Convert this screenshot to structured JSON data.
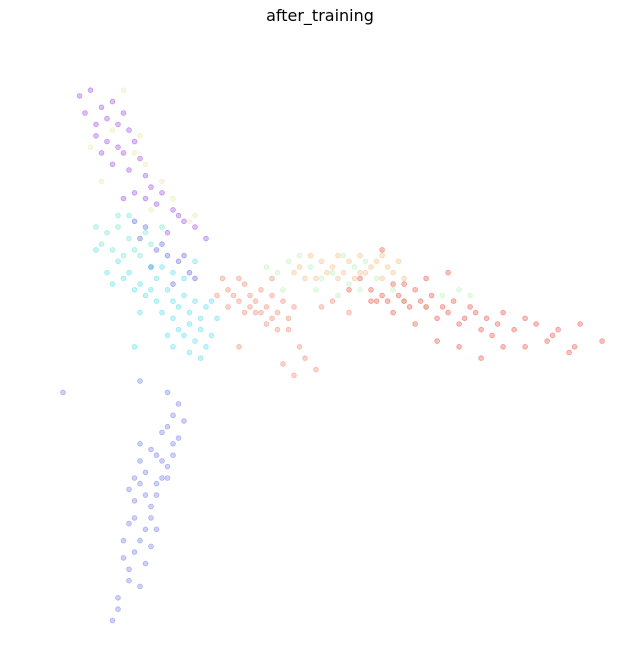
{
  "chart_data": {
    "type": "scatter",
    "title": "after_training",
    "xlabel": "",
    "ylabel": "",
    "axes_visible": false,
    "grid": false,
    "xlim": [
      0,
      100
    ],
    "ylim": [
      0,
      100
    ],
    "marker": "circle",
    "alpha": 0.3,
    "series": [
      {
        "name": "purple",
        "color": "#8a2be2",
        "points": [
          [
            9,
            94
          ],
          [
            11,
            95
          ],
          [
            13,
            92
          ],
          [
            14,
            90
          ],
          [
            15,
            93
          ],
          [
            16,
            89
          ],
          [
            17,
            91
          ],
          [
            18,
            88
          ],
          [
            12,
            87
          ],
          [
            14,
            86
          ],
          [
            16,
            85
          ],
          [
            17,
            84
          ],
          [
            19,
            86
          ],
          [
            20,
            83
          ],
          [
            15,
            82
          ],
          [
            18,
            81
          ],
          [
            21,
            80
          ],
          [
            22,
            78
          ],
          [
            19,
            77
          ],
          [
            24,
            77
          ],
          [
            17,
            76
          ],
          [
            23,
            75
          ],
          [
            26,
            74
          ],
          [
            28,
            72
          ],
          [
            30,
            71
          ],
          [
            25,
            70
          ],
          [
            27,
            73
          ],
          [
            12,
            89
          ],
          [
            10,
            91
          ],
          [
            13,
            84
          ],
          [
            21,
            76
          ],
          [
            32,
            69
          ]
        ]
      },
      {
        "name": "light-yellow",
        "color": "#e6e39a",
        "points": [
          [
            17,
            95
          ],
          [
            15,
            88
          ],
          [
            19,
            84
          ],
          [
            21,
            82
          ],
          [
            24,
            79
          ],
          [
            26,
            76
          ],
          [
            13,
            79
          ],
          [
            29,
            72
          ],
          [
            22,
            74
          ],
          [
            20,
            87
          ],
          [
            11,
            85
          ],
          [
            30,
            73
          ]
        ]
      },
      {
        "name": "blue-mid",
        "color": "#3f4bd8",
        "points": [
          [
            19,
            72
          ],
          [
            21,
            71
          ],
          [
            20,
            69
          ],
          [
            23,
            67
          ],
          [
            25,
            66
          ],
          [
            22,
            64
          ],
          [
            27,
            65
          ],
          [
            29,
            63
          ],
          [
            26,
            61
          ],
          [
            30,
            62
          ],
          [
            24,
            68
          ],
          [
            28,
            66
          ]
        ]
      },
      {
        "name": "teal",
        "color": "#57e0c8",
        "points": [
          [
            14,
            70
          ],
          [
            16,
            71
          ],
          [
            18,
            69
          ],
          [
            15,
            67
          ],
          [
            17,
            66
          ],
          [
            19,
            67
          ],
          [
            13,
            68
          ],
          [
            21,
            70
          ],
          [
            18,
            73
          ],
          [
            22,
            68
          ],
          [
            12,
            71
          ],
          [
            20,
            66
          ],
          [
            24,
            71
          ],
          [
            16,
            73
          ]
        ]
      },
      {
        "name": "cyan",
        "color": "#38d8e8",
        "points": [
          [
            12,
            67
          ],
          [
            16,
            65
          ],
          [
            18,
            63
          ],
          [
            20,
            61
          ],
          [
            22,
            64
          ],
          [
            23,
            62
          ],
          [
            25,
            60
          ],
          [
            26,
            58
          ],
          [
            27,
            57
          ],
          [
            28,
            59
          ],
          [
            29,
            56
          ],
          [
            30,
            58
          ],
          [
            31,
            55
          ],
          [
            32,
            57
          ],
          [
            24,
            56
          ],
          [
            26,
            55
          ],
          [
            27,
            53
          ],
          [
            28,
            52
          ],
          [
            29,
            54
          ],
          [
            30,
            51
          ],
          [
            31,
            53
          ],
          [
            32,
            50
          ],
          [
            25,
            52
          ],
          [
            23,
            58
          ],
          [
            21,
            59
          ],
          [
            19,
            60
          ],
          [
            17,
            62
          ],
          [
            14,
            63
          ],
          [
            28,
            62
          ],
          [
            33,
            58
          ],
          [
            34,
            55
          ],
          [
            26,
            63
          ],
          [
            30,
            65
          ],
          [
            24,
            64
          ],
          [
            22,
            60
          ],
          [
            15,
            61
          ],
          [
            20,
            56
          ],
          [
            19,
            50
          ],
          [
            31,
            48
          ],
          [
            29,
            49
          ],
          [
            33,
            52
          ],
          [
            26,
            50
          ]
        ]
      },
      {
        "name": "cornflower",
        "color": "#5a62e6",
        "points": [
          [
            20,
            44
          ],
          [
            25,
            42
          ],
          [
            26,
            38
          ],
          [
            27,
            40
          ],
          [
            28,
            37
          ],
          [
            24,
            35
          ],
          [
            26,
            33
          ],
          [
            23,
            31
          ],
          [
            25,
            29
          ],
          [
            22,
            32
          ],
          [
            21,
            28
          ],
          [
            24,
            27
          ],
          [
            23,
            24
          ],
          [
            20,
            26
          ],
          [
            22,
            22
          ],
          [
            19,
            20
          ],
          [
            21,
            18
          ],
          [
            20,
            16
          ],
          [
            18,
            19
          ],
          [
            19,
            14
          ],
          [
            17,
            13
          ],
          [
            18,
            11
          ],
          [
            19,
            23
          ],
          [
            22,
            20
          ],
          [
            21,
            24
          ],
          [
            23,
            26
          ],
          [
            24,
            30
          ],
          [
            25,
            36
          ],
          [
            27,
            34
          ],
          [
            20,
            30
          ],
          [
            18,
            9
          ],
          [
            16,
            6
          ],
          [
            16,
            4
          ],
          [
            15,
            2
          ],
          [
            17,
            16
          ],
          [
            18,
            25
          ],
          [
            19,
            27
          ],
          [
            20,
            33
          ],
          [
            21,
            12
          ],
          [
            22,
            15
          ],
          [
            20,
            8
          ],
          [
            23,
            18
          ],
          [
            25,
            27
          ],
          [
            26,
            31
          ],
          [
            6,
            42
          ]
        ]
      },
      {
        "name": "mint",
        "color": "#a8f0b0",
        "points": [
          [
            43,
            64
          ],
          [
            45,
            63
          ],
          [
            47,
            65
          ],
          [
            49,
            66
          ],
          [
            51,
            64
          ],
          [
            53,
            62
          ],
          [
            55,
            63
          ],
          [
            57,
            66
          ],
          [
            59,
            64
          ],
          [
            61,
            65
          ],
          [
            46,
            60
          ],
          [
            52,
            60
          ],
          [
            56,
            59
          ],
          [
            58,
            61
          ],
          [
            60,
            60
          ],
          [
            63,
            62
          ],
          [
            66,
            60
          ],
          [
            68,
            58
          ],
          [
            72,
            57
          ],
          [
            75,
            59
          ],
          [
            78,
            60
          ],
          [
            80,
            59
          ]
        ]
      },
      {
        "name": "tan",
        "color": "#f2b26a",
        "points": [
          [
            49,
            64
          ],
          [
            51,
            66
          ],
          [
            53,
            65
          ],
          [
            54,
            63
          ],
          [
            55,
            64
          ],
          [
            56,
            66
          ],
          [
            57,
            63
          ],
          [
            58,
            65
          ],
          [
            59,
            62
          ],
          [
            60,
            66
          ],
          [
            61,
            63
          ],
          [
            62,
            64
          ],
          [
            63,
            65
          ],
          [
            64,
            62
          ],
          [
            65,
            64
          ],
          [
            66,
            63
          ],
          [
            67,
            65
          ],
          [
            68,
            62
          ],
          [
            52,
            62
          ],
          [
            56,
            62
          ],
          [
            60,
            63
          ],
          [
            64,
            66
          ],
          [
            48,
            63
          ],
          [
            50,
            62
          ]
        ]
      },
      {
        "name": "salmon",
        "color": "#f07050",
        "points": [
          [
            36,
            60
          ],
          [
            38,
            62
          ],
          [
            39,
            61
          ],
          [
            40,
            59
          ],
          [
            41,
            58
          ],
          [
            42,
            60
          ],
          [
            43,
            57
          ],
          [
            44,
            59
          ],
          [
            45,
            56
          ],
          [
            46,
            58
          ],
          [
            47,
            55
          ],
          [
            48,
            57
          ],
          [
            44,
            55
          ],
          [
            42,
            56
          ],
          [
            40,
            57
          ],
          [
            38,
            58
          ],
          [
            37,
            59
          ],
          [
            45,
            53
          ],
          [
            47,
            53
          ],
          [
            43,
            54
          ],
          [
            41,
            56
          ],
          [
            39,
            56
          ],
          [
            36,
            57
          ],
          [
            34,
            59
          ],
          [
            49,
            50
          ],
          [
            48,
            45
          ],
          [
            46,
            47
          ],
          [
            50,
            48
          ],
          [
            52,
            46
          ],
          [
            38,
            50
          ],
          [
            44,
            62
          ],
          [
            35,
            62
          ],
          [
            53,
            57
          ],
          [
            55,
            58
          ],
          [
            58,
            56
          ]
        ]
      },
      {
        "name": "red",
        "color": "#e83222",
        "points": [
          [
            60,
            62
          ],
          [
            62,
            60
          ],
          [
            63,
            58
          ],
          [
            64,
            59
          ],
          [
            65,
            58
          ],
          [
            66,
            61
          ],
          [
            67,
            59
          ],
          [
            68,
            58
          ],
          [
            69,
            57
          ],
          [
            70,
            60
          ],
          [
            71,
            58
          ],
          [
            72,
            57
          ],
          [
            73,
            59
          ],
          [
            74,
            55
          ],
          [
            75,
            57
          ],
          [
            76,
            56
          ],
          [
            77,
            58
          ],
          [
            78,
            54
          ],
          [
            79,
            55
          ],
          [
            80,
            57
          ],
          [
            81,
            56
          ],
          [
            82,
            53
          ],
          [
            83,
            55
          ],
          [
            84,
            52
          ],
          [
            85,
            54
          ],
          [
            86,
            56
          ],
          [
            88,
            53
          ],
          [
            90,
            55
          ],
          [
            92,
            54
          ],
          [
            94,
            51
          ],
          [
            95,
            52
          ],
          [
            96,
            53
          ],
          [
            98,
            49
          ],
          [
            99,
            50
          ],
          [
            100,
            54
          ],
          [
            104,
            51
          ],
          [
            90,
            50
          ],
          [
            86,
            50
          ],
          [
            82,
            48
          ],
          [
            78,
            50
          ],
          [
            74,
            51
          ],
          [
            70,
            54
          ],
          [
            66,
            56
          ],
          [
            62,
            58
          ],
          [
            58,
            60
          ],
          [
            72,
            62
          ],
          [
            64,
            67
          ],
          [
            76,
            63
          ],
          [
            68,
            61
          ]
        ]
      }
    ]
  }
}
